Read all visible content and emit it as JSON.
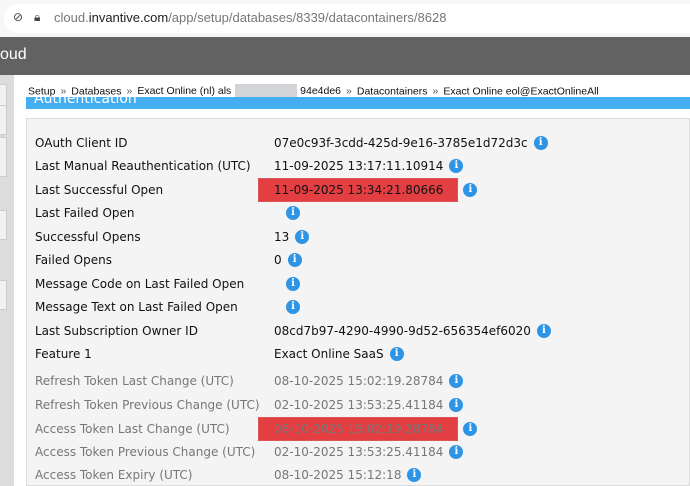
{
  "browser": {
    "url_host_prefix": "cloud.",
    "url_host": "invantive.com",
    "url_path": "/app/setup/databases/8339/datacontainers/8628"
  },
  "header": {
    "title_fragment": "oud"
  },
  "breadcrumb": [
    "Setup",
    "Databases",
    "Exact Online (nl) als",
    "94e4de6",
    "Datacontainers",
    "Exact Online eol@ExactOnlineAll"
  ],
  "section": {
    "title": "Authentication"
  },
  "fields": [
    {
      "label": "OAuth Client ID",
      "value": "07e0c93f-3cdd-425d-9e16-3785e1d72d3c"
    },
    {
      "label": "Last Manual Reauthentication (UTC)",
      "value": "11-09-2025 13:17:11.10914"
    },
    {
      "label": "Last Successful Open",
      "value": "11-09-2025 13:34:21.80666",
      "highlighted": true
    },
    {
      "label": "Last Failed Open",
      "value": ""
    },
    {
      "label": "Successful Opens",
      "value": "13"
    },
    {
      "label": "Failed Opens",
      "value": "0"
    },
    {
      "label": "Message Code on Last Failed Open",
      "value": ""
    },
    {
      "label": "Message Text on Last Failed Open",
      "value": ""
    },
    {
      "label": "Last Subscription Owner ID",
      "value": "08cd7b97-4290-4990-9d52-656354ef6020"
    },
    {
      "label": "Feature 1",
      "value": "Exact Online SaaS"
    },
    {
      "label": "Refresh Token Last Change (UTC)",
      "value": "08-10-2025 15:02:19.28784",
      "muted": true
    },
    {
      "label": "Refresh Token Previous Change (UTC)",
      "value": "02-10-2025 13:53:25.41184",
      "muted": true
    },
    {
      "label": "Access Token Last Change (UTC)",
      "value": "08-10-2025 15:02:19.28784",
      "muted": true,
      "highlighted": true
    },
    {
      "label": "Access Token Previous Change (UTC)",
      "value": "02-10-2025 13:53:25.41184",
      "muted": true
    },
    {
      "label": "Access Token Expiry (UTC)",
      "value": "08-10-2025 15:12:18",
      "muted": true
    }
  ],
  "icons": {
    "info": "info-icon",
    "info_glyph": "i",
    "lock": "lock-icon",
    "tracking": "tracking-prevention-icon"
  },
  "colors": {
    "accent": "#45aef0",
    "info": "#2d94e6",
    "highlight": "#e33f42",
    "header": "#626262"
  }
}
